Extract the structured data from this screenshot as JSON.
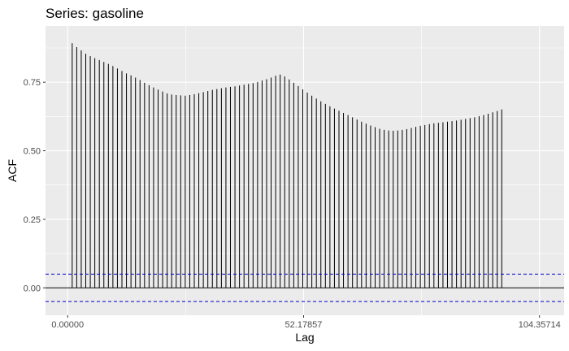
{
  "chart_data": {
    "type": "bar",
    "title": "Series: gasoline",
    "xlabel": "Lag",
    "ylabel": "ACF",
    "xlim": [
      -4.9,
      109.8
    ],
    "ylim": [
      -0.1,
      0.955
    ],
    "x_ticks": [
      {
        "value": 0,
        "label": "0.00000"
      },
      {
        "value": 52.17857,
        "label": "52.17857"
      },
      {
        "value": 104.35714,
        "label": "104.35714"
      }
    ],
    "y_ticks": [
      {
        "value": 0,
        "label": "0.00"
      },
      {
        "value": 0.25,
        "label": "0.25"
      },
      {
        "value": 0.5,
        "label": "0.50"
      },
      {
        "value": 0.75,
        "label": "0.75"
      }
    ],
    "lag_step": 1,
    "lag_start": 1,
    "values": [
      0.892,
      0.878,
      0.866,
      0.854,
      0.845,
      0.838,
      0.831,
      0.824,
      0.817,
      0.809,
      0.8,
      0.791,
      0.782,
      0.775,
      0.767,
      0.758,
      0.748,
      0.739,
      0.731,
      0.723,
      0.716,
      0.709,
      0.705,
      0.703,
      0.702,
      0.701,
      0.703,
      0.706,
      0.71,
      0.714,
      0.718,
      0.722,
      0.725,
      0.728,
      0.731,
      0.733,
      0.735,
      0.738,
      0.741,
      0.744,
      0.747,
      0.751,
      0.756,
      0.761,
      0.767,
      0.774,
      0.778,
      0.771,
      0.76,
      0.748,
      0.736,
      0.724,
      0.712,
      0.701,
      0.69,
      0.68,
      0.671,
      0.662,
      0.654,
      0.646,
      0.638,
      0.63,
      0.622,
      0.614,
      0.606,
      0.599,
      0.592,
      0.586,
      0.58,
      0.576,
      0.574,
      0.573,
      0.574,
      0.576,
      0.579,
      0.583,
      0.587,
      0.591,
      0.594,
      0.597,
      0.6,
      0.602,
      0.604,
      0.606,
      0.608,
      0.61,
      0.613,
      0.616,
      0.619,
      0.622,
      0.626,
      0.63,
      0.635,
      0.64,
      0.645,
      0.651
    ],
    "confidence_bounds": [
      0.05,
      -0.05
    ],
    "colors": {
      "panel": "#ebebeb",
      "grid": "#ffffff",
      "bars": "#000000",
      "zero_line": "#000000",
      "confidence": "#0000cc",
      "tick_text": "#4d4d4d"
    },
    "grid": true,
    "legend": "none"
  }
}
